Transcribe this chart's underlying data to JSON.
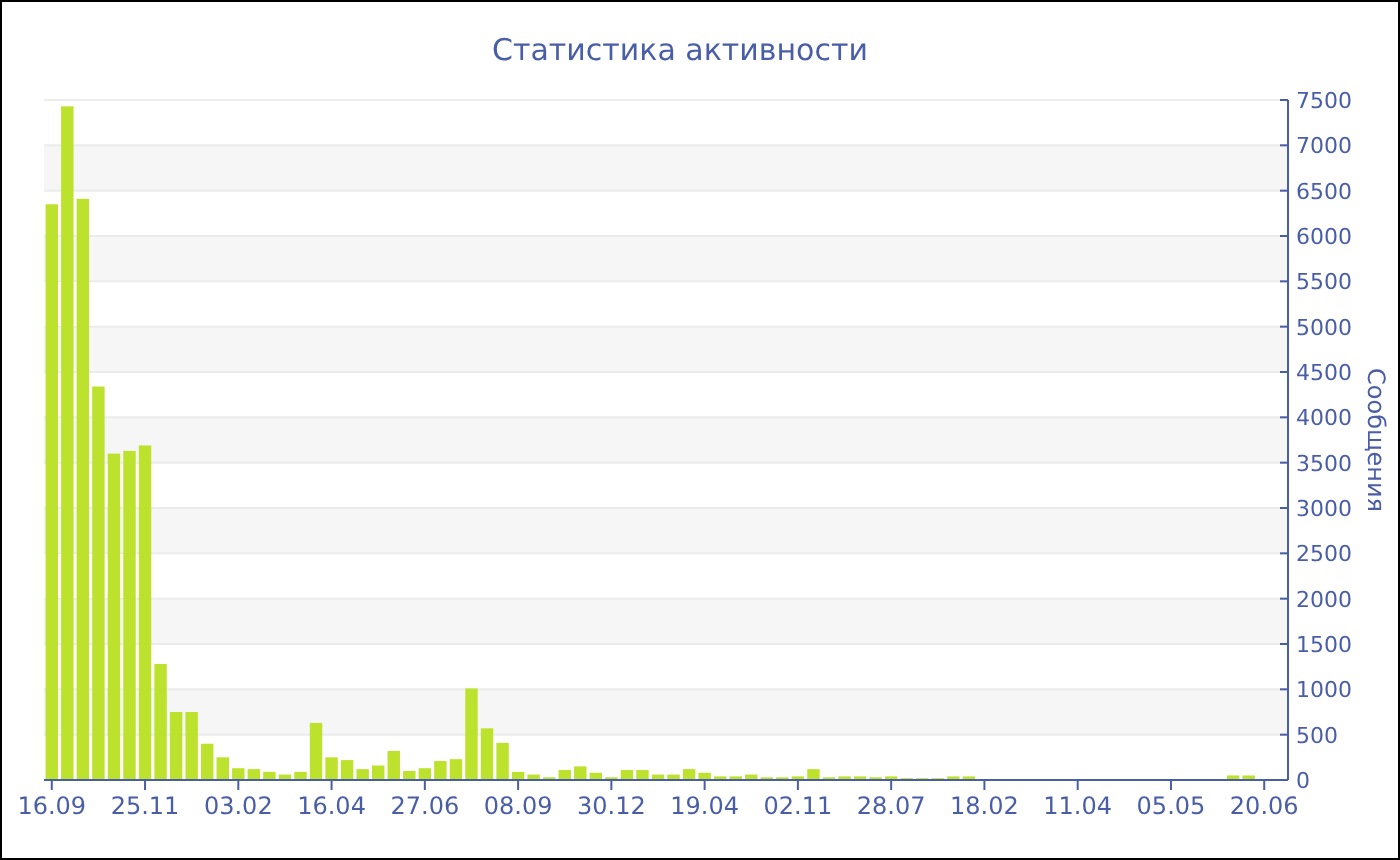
{
  "chart_data": {
    "type": "bar",
    "title": "Статистика активности",
    "ylabel": "Сообщения",
    "categories": [
      "16.09",
      null,
      null,
      null,
      null,
      null,
      "25.11",
      null,
      null,
      null,
      null,
      null,
      "03.02",
      null,
      null,
      null,
      null,
      null,
      "16.04",
      null,
      null,
      null,
      null,
      null,
      "27.06",
      null,
      null,
      null,
      null,
      null,
      "08.09",
      null,
      null,
      null,
      null,
      null,
      "30.12",
      null,
      null,
      null,
      null,
      null,
      "19.04",
      null,
      null,
      null,
      null,
      null,
      "02.11",
      null,
      null,
      null,
      null,
      null,
      "28.07",
      null,
      null,
      null,
      null,
      null,
      "18.02",
      null,
      null,
      null,
      null,
      null,
      "11.04",
      null,
      null,
      null,
      null,
      null,
      "05.05",
      null,
      null,
      null,
      null,
      null,
      "20.06"
    ],
    "values": [
      6350,
      7430,
      6410,
      4340,
      3600,
      3630,
      3690,
      1280,
      750,
      750,
      400,
      250,
      130,
      120,
      90,
      60,
      90,
      630,
      250,
      220,
      120,
      160,
      320,
      100,
      130,
      210,
      230,
      1010,
      570,
      410,
      90,
      60,
      30,
      110,
      150,
      80,
      30,
      110,
      110,
      60,
      60,
      120,
      80,
      40,
      40,
      60,
      30,
      30,
      40,
      120,
      30,
      40,
      40,
      30,
      40,
      20,
      20,
      20,
      40,
      40,
      10,
      10,
      10,
      10,
      10,
      10,
      10,
      10,
      10,
      10,
      10,
      10,
      10,
      10,
      10,
      10,
      50,
      50,
      10
    ],
    "color": "#bde22e",
    "ylim": [
      0,
      7500
    ],
    "yticks": [
      0,
      500,
      1000,
      1500,
      2000,
      2500,
      3000,
      3500,
      4000,
      4500,
      5000,
      5500,
      6000,
      6500,
      7000,
      7500
    ],
    "grid": true
  }
}
